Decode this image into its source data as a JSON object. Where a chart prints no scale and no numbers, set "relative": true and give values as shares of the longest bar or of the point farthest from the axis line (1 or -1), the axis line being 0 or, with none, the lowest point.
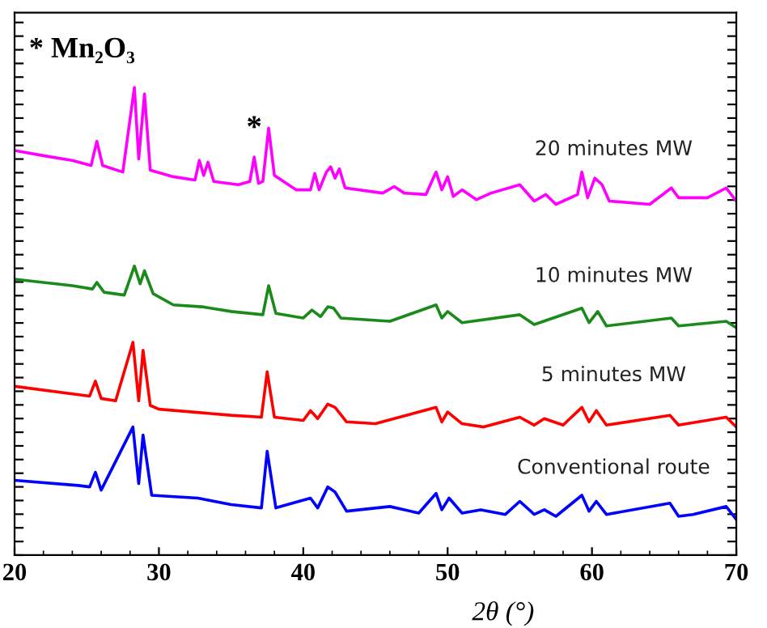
{
  "chart_data": {
    "type": "line",
    "relative": true,
    "xlabel": "2θ (°)",
    "xlim": [
      20,
      70
    ],
    "xticks": [
      20,
      30,
      40,
      50,
      60,
      70
    ],
    "tick_labels": "x",
    "grid": false,
    "legend": false,
    "marker": "none",
    "line_style": "solid",
    "annotations": [
      "* Mn₂O₃",
      {
        "text": "*",
        "x": 36.6,
        "y": 0.851
      }
    ],
    "series": [
      {
        "name": "20 minutes MW",
        "color": "#ff00ff",
        "x": [
          20,
          22,
          24,
          25.3,
          25.7,
          26.1,
          27.5,
          28.3,
          28.6,
          29.0,
          29.4,
          31,
          32.5,
          32.8,
          33.1,
          33.4,
          33.8,
          35.5,
          36.3,
          36.6,
          36.9,
          37.2,
          37.6,
          38.0,
          39.5,
          40.5,
          40.8,
          41.1,
          41.6,
          41.9,
          42.2,
          42.5,
          42.9,
          45.5,
          46.3,
          47,
          48.5,
          49.2,
          49.6,
          50.0,
          50.4,
          51,
          52,
          53,
          55,
          56,
          56.8,
          57.5,
          59,
          59.3,
          59.7,
          60.2,
          60.7,
          61.2,
          64,
          65.5,
          66,
          68,
          69.3,
          70
        ],
        "values": [
          0.865,
          0.854,
          0.844,
          0.833,
          0.885,
          0.833,
          0.819,
          1.0,
          0.847,
          0.986,
          0.823,
          0.809,
          0.802,
          0.844,
          0.812,
          0.84,
          0.799,
          0.792,
          0.799,
          0.851,
          0.795,
          0.799,
          0.913,
          0.812,
          0.781,
          0.781,
          0.816,
          0.781,
          0.819,
          0.83,
          0.806,
          0.826,
          0.785,
          0.774,
          0.788,
          0.774,
          0.771,
          0.819,
          0.781,
          0.809,
          0.767,
          0.781,
          0.76,
          0.774,
          0.792,
          0.757,
          0.771,
          0.75,
          0.771,
          0.819,
          0.764,
          0.806,
          0.792,
          0.757,
          0.75,
          0.785,
          0.764,
          0.764,
          0.785,
          0.757
        ]
      },
      {
        "name": "10 minutes MW",
        "color": "#1a8a1a",
        "x": [
          20,
          22,
          24,
          25.4,
          25.7,
          26.2,
          27.6,
          28.3,
          28.7,
          29.0,
          29.6,
          31,
          33,
          35,
          37.2,
          37.6,
          38.1,
          40,
          40.6,
          41.2,
          41.7,
          42.1,
          42.6,
          46,
          49.2,
          49.6,
          50,
          51,
          55,
          56,
          59.3,
          59.8,
          60.4,
          61,
          65.5,
          66,
          69.3,
          70
        ],
        "values": [
          0.59,
          0.583,
          0.576,
          0.569,
          0.583,
          0.562,
          0.556,
          0.618,
          0.58,
          0.608,
          0.559,
          0.535,
          0.531,
          0.521,
          0.514,
          0.576,
          0.517,
          0.507,
          0.524,
          0.51,
          0.531,
          0.528,
          0.507,
          0.5,
          0.535,
          0.507,
          0.521,
          0.497,
          0.514,
          0.493,
          0.528,
          0.497,
          0.521,
          0.49,
          0.507,
          0.49,
          0.5,
          0.486
        ]
      },
      {
        "name": "5 minutes MW",
        "color": "#ff0000",
        "x": [
          20,
          25.2,
          25.6,
          26,
          27,
          28.2,
          28.6,
          28.9,
          29.4,
          30,
          35,
          37.1,
          37.5,
          38,
          40,
          40.5,
          41,
          41.7,
          42.2,
          43,
          45,
          49.2,
          49.6,
          50,
          51,
          52.5,
          55,
          56,
          56.7,
          58,
          59.3,
          59.8,
          60.3,
          61,
          65.4,
          66,
          69.3,
          70
        ],
        "values": [
          0.361,
          0.34,
          0.372,
          0.335,
          0.33,
          0.455,
          0.33,
          0.438,
          0.32,
          0.312,
          0.299,
          0.295,
          0.392,
          0.295,
          0.288,
          0.309,
          0.292,
          0.323,
          0.316,
          0.285,
          0.281,
          0.316,
          0.285,
          0.306,
          0.281,
          0.274,
          0.295,
          0.278,
          0.292,
          0.278,
          0.316,
          0.285,
          0.309,
          0.278,
          0.299,
          0.278,
          0.295,
          0.274
        ]
      },
      {
        "name": "Conventional route",
        "color": "#0000ff",
        "x": [
          20,
          24.4,
          25.2,
          25.6,
          26,
          28.2,
          28.6,
          28.9,
          29.5,
          32.7,
          35,
          37.1,
          37.5,
          38.1,
          40.5,
          41,
          41.7,
          42.2,
          43,
          46,
          48,
          49.2,
          49.6,
          50.1,
          51,
          52.3,
          54,
          55,
          56,
          56.7,
          57.5,
          59.3,
          59.8,
          60.3,
          61,
          65.4,
          66,
          67,
          69.3,
          70
        ],
        "values": [
          0.16,
          0.149,
          0.146,
          0.177,
          0.139,
          0.274,
          0.153,
          0.257,
          0.128,
          0.122,
          0.108,
          0.101,
          0.222,
          0.101,
          0.122,
          0.101,
          0.146,
          0.135,
          0.094,
          0.104,
          0.09,
          0.132,
          0.097,
          0.122,
          0.09,
          0.097,
          0.087,
          0.115,
          0.087,
          0.097,
          0.083,
          0.128,
          0.094,
          0.115,
          0.087,
          0.111,
          0.083,
          0.087,
          0.104,
          0.076
        ]
      }
    ]
  }
}
